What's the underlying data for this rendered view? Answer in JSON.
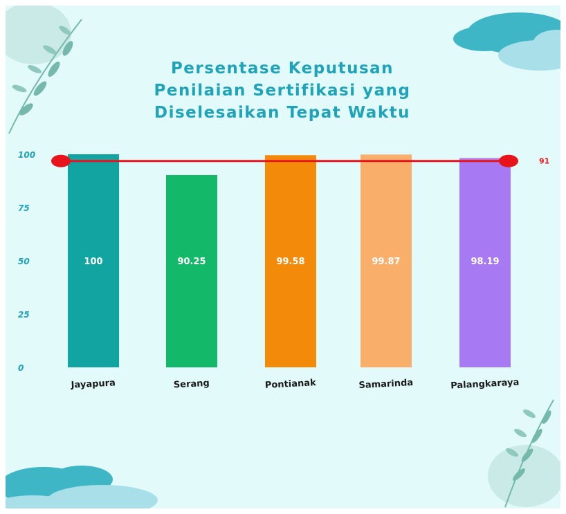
{
  "title_lines": [
    "Persentase Keputusan",
    "Penilaian Sertifikasi yang",
    "Diselesaikan Tepat Waktu"
  ],
  "chart_data": {
    "type": "bar",
    "title": "Persentase Keputusan Penilaian Sertifikasi yang Diselesaikan Tepat Waktu",
    "categories": [
      "Jayapura",
      "Serang",
      "Pontianak",
      "Samarinda",
      "Palangkaraya"
    ],
    "values": [
      100,
      90.25,
      99.58,
      99.87,
      98.19
    ],
    "value_labels": [
      "100",
      "90.25",
      "99.58",
      "99.87",
      "98.19"
    ],
    "colors": [
      "#12a4a0",
      "#13b968",
      "#f38a0a",
      "#f9ae6a",
      "#a77af3"
    ],
    "yticks": [
      0,
      25,
      50,
      75,
      100
    ],
    "ytick_labels": [
      "0",
      "25",
      "50",
      "75",
      "100"
    ],
    "target_line": {
      "value": 91,
      "label": "91",
      "color": "#e8141b"
    },
    "xlabel": "",
    "ylabel": "",
    "grid": false,
    "legend": "none"
  },
  "colors": {
    "background": "#e3fafb",
    "title": "#1fa3b8",
    "axis_labels": "#1fa3b8",
    "foliage": "#74b9ab",
    "cloud_dark": "#3fb6c5",
    "cloud_light": "#a9dfe9"
  },
  "decorations": [
    "leaf-branch-top-left",
    "cloud-top-right",
    "cloud-bottom-left",
    "leaf-branch-bottom-right"
  ]
}
